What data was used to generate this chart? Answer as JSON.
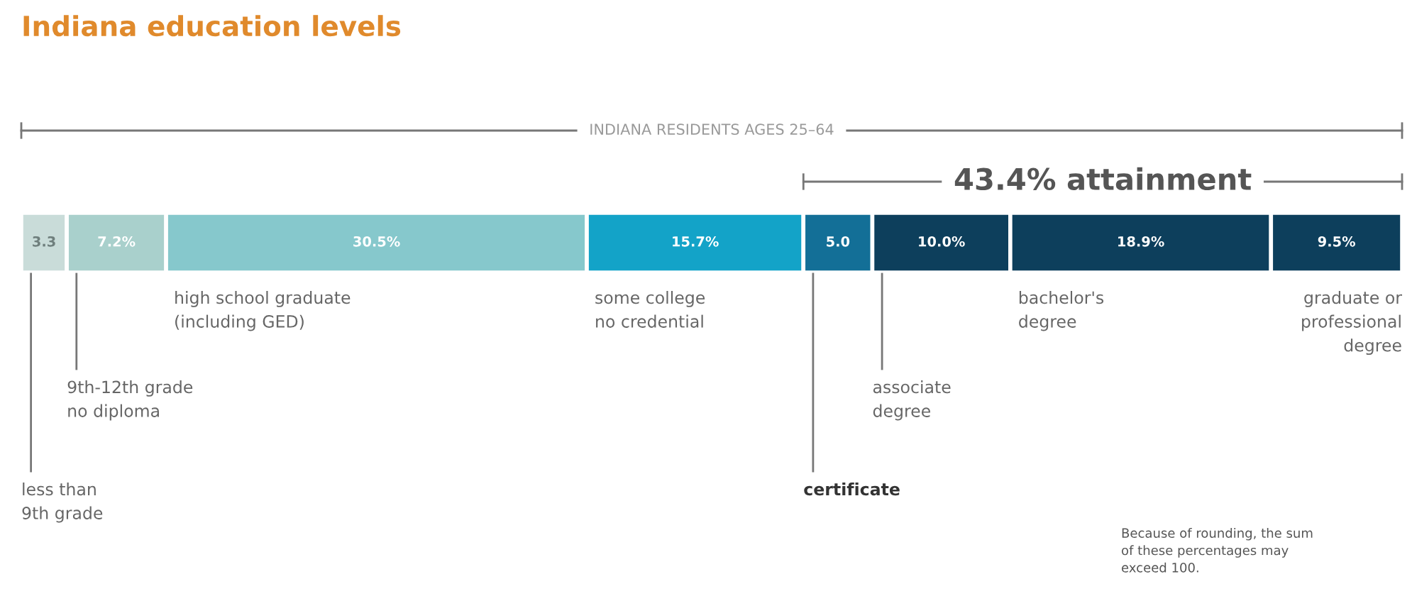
{
  "chart_data": {
    "type": "bar",
    "orientation": "horizontal",
    "stacked": true,
    "title": "Indiana education levels",
    "categories": [
      null
    ],
    "series": [
      {
        "name": "less than\n9th grade",
        "color": "#c9dcd9",
        "values": [
          3.3
        ],
        "value_labels": [
          "3.3"
        ]
      },
      {
        "name": "9th-12th grade\nno diploma",
        "color": "#a9d0cc",
        "values": [
          7.2
        ],
        "value_labels": [
          "7.2%"
        ]
      },
      {
        "name": "high school graduate\n(including GED)",
        "color": "#86c8cc",
        "values": [
          30.5
        ],
        "value_labels": [
          "30.5%"
        ]
      },
      {
        "name": "some college\nno credential",
        "color": "#13a3c8",
        "values": [
          15.7
        ],
        "value_labels": [
          "15.7%"
        ]
      },
      {
        "name": "certificate",
        "color": "#136f97",
        "values": [
          5.0
        ],
        "value_labels": [
          "5.0"
        ]
      },
      {
        "name": "associate\ndegree",
        "color": "#0d3f5c",
        "values": [
          10.0
        ],
        "value_labels": [
          "10.0%"
        ]
      },
      {
        "name": "bachelor's\ndegree",
        "color": "#0d3f5c",
        "values": [
          18.9
        ],
        "value_labels": [
          "18.9%"
        ]
      },
      {
        "name": "graduate or\nprofessional\ndegree",
        "color": "#0d3f5c",
        "values": [
          9.5
        ],
        "value_labels": [
          "9.5%"
        ]
      }
    ],
    "annotations": [
      "INDIANA RESIDENTS AGES 25–64",
      "43.4% attainment",
      "Because of rounding, the sum\nof these percentages may\nexceed 100."
    ],
    "tick_labels": false
  }
}
